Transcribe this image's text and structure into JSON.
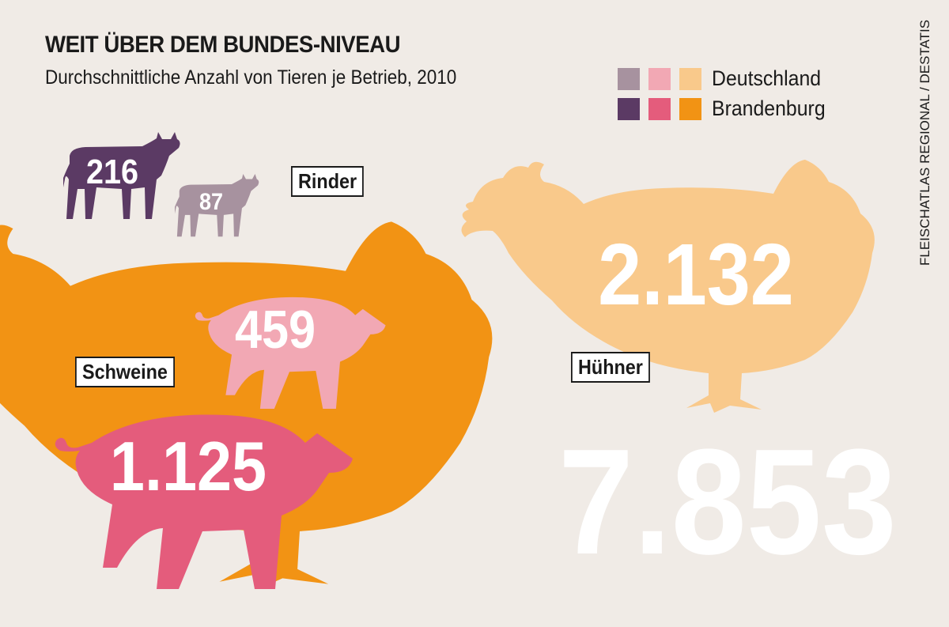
{
  "chart_data": {
    "type": "bar",
    "title": "WEIT ÜBER DEM BUNDES-NIVEAU",
    "subtitle": "Durchschnittliche Anzahl von Tieren je Betrieb, 2010",
    "categories": [
      "Rinder",
      "Schweine",
      "Hühner"
    ],
    "series": [
      {
        "name": "Deutschland",
        "values": [
          87,
          459,
          2132
        ],
        "labels": [
          "87",
          "459",
          "2.132"
        ]
      },
      {
        "name": "Brandenburg",
        "values": [
          216,
          1125,
          7853
        ],
        "labels": [
          "216",
          "1.125",
          "7.853"
        ]
      }
    ],
    "colors": {
      "Deutschland": {
        "Rinder": "#a7929f",
        "Schweine": "#f2a8b4",
        "Hühner": "#f9c98b"
      },
      "Brandenburg": {
        "Rinder": "#5b3a64",
        "Schweine": "#e45c7c",
        "Hühner": "#f29314"
      }
    },
    "source": "FLEISCHATLAS REGIONAL / DESTATIS"
  },
  "legend": {
    "deutschland": "Deutschland",
    "brandenburg": "Brandenburg"
  },
  "background": "#f0ebe6"
}
